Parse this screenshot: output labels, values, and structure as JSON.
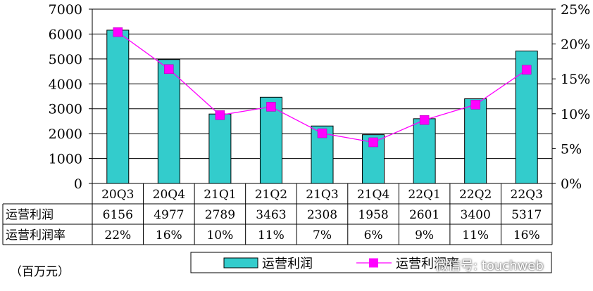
{
  "chart_data": {
    "type": "bar",
    "categories": [
      "20Q3",
      "20Q4",
      "21Q1",
      "21Q2",
      "21Q3",
      "21Q4",
      "22Q1",
      "22Q2",
      "22Q3"
    ],
    "series": [
      {
        "name": "运营利润",
        "type": "bar",
        "axis": "left",
        "values": [
          6156,
          4977,
          2789,
          3463,
          2308,
          1958,
          2601,
          3400,
          5317
        ],
        "color": "#33CCCC"
      },
      {
        "name": "运营利润率",
        "type": "line",
        "axis": "right",
        "values": [
          21.7,
          16.4,
          9.8,
          11.0,
          7.2,
          5.9,
          9.1,
          11.3,
          16.3
        ],
        "color": "#FF00FF"
      }
    ],
    "ylim_left": [
      0,
      7000
    ],
    "yticks_left": [
      "0",
      "1000",
      "2000",
      "3000",
      "4000",
      "5000",
      "6000",
      "7000"
    ],
    "ylim_right": [
      0,
      25
    ],
    "yticks_right": [
      "0%",
      "5%",
      "10%",
      "15%",
      "20%",
      "25%"
    ],
    "grid": true,
    "legend_position": "bottom",
    "table": {
      "rows": [
        {
          "label": "运营利润",
          "values": [
            "6156",
            "4977",
            "2789",
            "3463",
            "2308",
            "1958",
            "2601",
            "3400",
            "5317"
          ]
        },
        {
          "label": "运营利润率",
          "values": [
            "22%",
            "16%",
            "10%",
            "11%",
            "7%",
            "6%",
            "9%",
            "11%",
            "16%"
          ]
        }
      ]
    },
    "unit_label": "（百万元）"
  },
  "watermark": "微信号: touchweb"
}
